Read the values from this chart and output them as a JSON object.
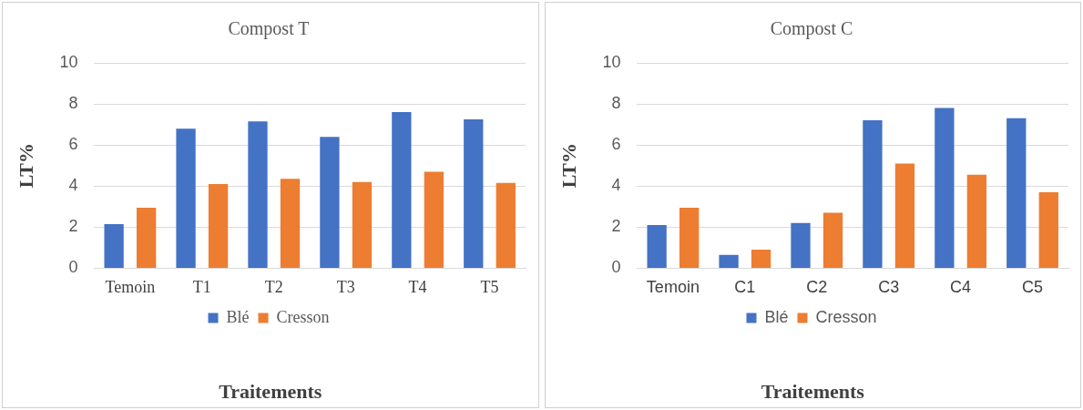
{
  "chart_data": [
    {
      "type": "bar",
      "title": "Compost T",
      "xlabel": "Traitements",
      "ylabel": "LT%",
      "categories": [
        "Temoin",
        "T1",
        "T2",
        "T3",
        "T4",
        "T5"
      ],
      "series": [
        {
          "name": "Blé",
          "color": "#4472c4",
          "values": [
            2.15,
            6.8,
            7.15,
            6.4,
            7.6,
            7.25
          ]
        },
        {
          "name": "Cresson",
          "color": "#ed7d31",
          "values": [
            2.95,
            4.1,
            4.35,
            4.2,
            4.7,
            4.15
          ]
        }
      ],
      "ylim": [
        0,
        10
      ],
      "yticks": [
        0,
        2,
        4,
        6,
        8,
        10
      ],
      "grid": "y",
      "legend": "bottom"
    },
    {
      "type": "bar",
      "title": "Compost C",
      "xlabel": "Traitements",
      "ylabel": "LT%",
      "categories": [
        "Temoin",
        "C1",
        "C2",
        "C3",
        "C4",
        "C5"
      ],
      "series": [
        {
          "name": "Blé",
          "color": "#4472c4",
          "values": [
            2.1,
            0.65,
            2.2,
            7.2,
            7.8,
            7.3
          ]
        },
        {
          "name": "Cresson",
          "color": "#ed7d31",
          "values": [
            2.95,
            0.9,
            2.7,
            5.1,
            4.55,
            3.7
          ]
        }
      ],
      "ylim": [
        0,
        10
      ],
      "yticks": [
        0,
        2,
        4,
        6,
        8,
        10
      ],
      "grid": "y",
      "legend": "bottom"
    }
  ]
}
